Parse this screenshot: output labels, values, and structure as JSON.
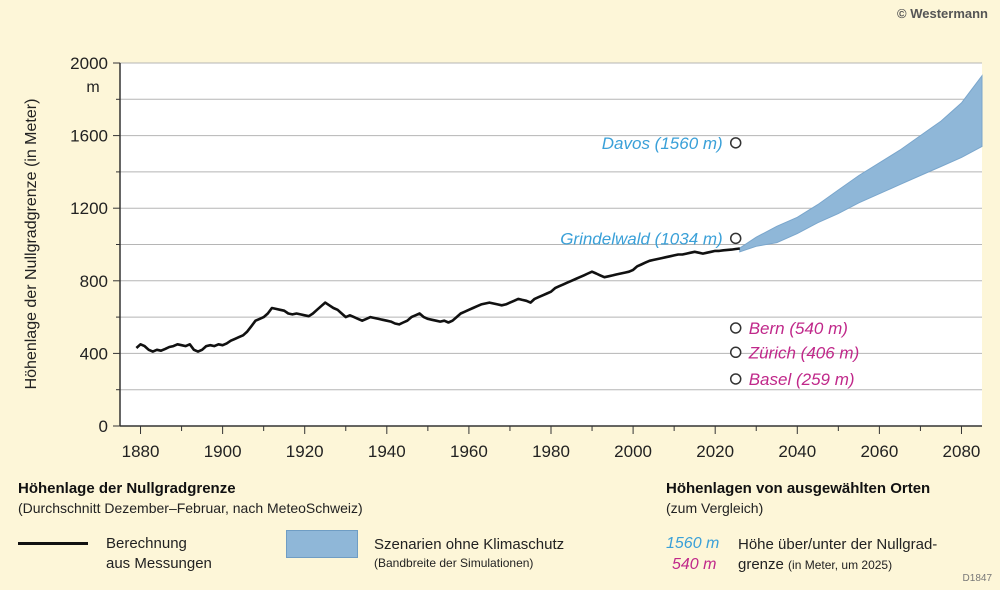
{
  "copyright": "© Westermann",
  "code": "D1847",
  "chart_data": {
    "type": "line",
    "ylabel": "Höhenlage der Nullgradgrenze (in Meter)",
    "yunit": "m",
    "xlim": [
      1875,
      2085
    ],
    "ylim": [
      0,
      2000
    ],
    "x_ticks": [
      1880,
      1900,
      1920,
      1940,
      1960,
      1980,
      2000,
      2020,
      2040,
      2060,
      2080
    ],
    "y_ticks": [
      0,
      400,
      800,
      1200,
      1600,
      2000
    ],
    "grid": true,
    "series": [
      {
        "name": "Berechnung aus Messungen",
        "color": "#111111",
        "x": [
          1879,
          1880,
          1881,
          1882,
          1883,
          1884,
          1885,
          1886,
          1887,
          1888,
          1889,
          1890,
          1891,
          1892,
          1893,
          1894,
          1895,
          1896,
          1897,
          1898,
          1899,
          1900,
          1901,
          1902,
          1903,
          1904,
          1905,
          1906,
          1907,
          1908,
          1909,
          1910,
          1911,
          1912,
          1913,
          1914,
          1915,
          1916,
          1917,
          1918,
          1919,
          1920,
          1921,
          1922,
          1923,
          1924,
          1925,
          1926,
          1927,
          1928,
          1929,
          1930,
          1931,
          1932,
          1933,
          1934,
          1935,
          1936,
          1937,
          1938,
          1939,
          1940,
          1941,
          1942,
          1943,
          1944,
          1945,
          1946,
          1947,
          1948,
          1949,
          1950,
          1951,
          1952,
          1953,
          1954,
          1955,
          1956,
          1957,
          1958,
          1959,
          1960,
          1961,
          1962,
          1963,
          1964,
          1965,
          1966,
          1967,
          1968,
          1969,
          1970,
          1971,
          1972,
          1973,
          1974,
          1975,
          1976,
          1977,
          1978,
          1979,
          1980,
          1981,
          1982,
          1983,
          1984,
          1985,
          1986,
          1987,
          1988,
          1989,
          1990,
          1991,
          1992,
          1993,
          1994,
          1995,
          1996,
          1997,
          1998,
          1999,
          2000,
          2001,
          2002,
          2003,
          2004,
          2005,
          2006,
          2007,
          2008,
          2009,
          2010,
          2011,
          2012,
          2013,
          2014,
          2015,
          2016,
          2017,
          2018,
          2019,
          2020,
          2021,
          2022,
          2023,
          2024,
          2025,
          2026
        ],
        "values": [
          430,
          450,
          440,
          420,
          410,
          420,
          415,
          425,
          435,
          440,
          450,
          445,
          440,
          450,
          420,
          410,
          420,
          440,
          445,
          440,
          450,
          445,
          455,
          470,
          480,
          490,
          500,
          520,
          550,
          580,
          590,
          600,
          620,
          650,
          645,
          640,
          635,
          620,
          615,
          620,
          615,
          610,
          605,
          620,
          640,
          660,
          680,
          665,
          650,
          640,
          620,
          600,
          610,
          600,
          590,
          580,
          590,
          600,
          595,
          590,
          585,
          580,
          575,
          565,
          560,
          570,
          580,
          600,
          610,
          620,
          600,
          590,
          585,
          580,
          575,
          580,
          570,
          580,
          600,
          620,
          630,
          640,
          650,
          660,
          670,
          675,
          680,
          675,
          670,
          665,
          670,
          680,
          690,
          700,
          695,
          690,
          680,
          700,
          710,
          720,
          730,
          740,
          760,
          770,
          780,
          790,
          800,
          810,
          820,
          830,
          840,
          850,
          840,
          830,
          820,
          825,
          830,
          835,
          840,
          845,
          850,
          860,
          880,
          890,
          900,
          910,
          915,
          920,
          925,
          930,
          935,
          940,
          945,
          945,
          950,
          955,
          960,
          955,
          950,
          955,
          960,
          965,
          965,
          968,
          970,
          972,
          975,
          978
        ]
      },
      {
        "name": "Szenarien ohne Klimaschutz",
        "color": "#8fb7d8",
        "x": [
          2026,
          2030,
          2035,
          2040,
          2045,
          2050,
          2055,
          2060,
          2065,
          2070,
          2075,
          2080,
          2085
        ],
        "low": [
          960,
          990,
          1010,
          1060,
          1120,
          1170,
          1230,
          1280,
          1330,
          1380,
          1430,
          1480,
          1540
        ],
        "high": [
          980,
          1040,
          1100,
          1150,
          1220,
          1300,
          1380,
          1450,
          1520,
          1600,
          1680,
          1780,
          1930
        ]
      }
    ],
    "places": [
      {
        "label": "Davos (1560 m)",
        "year": 2025,
        "value": 1560,
        "color": "#3aa0d8",
        "side": "left"
      },
      {
        "label": "Grindelwald (1034 m)",
        "year": 2025,
        "value": 1034,
        "color": "#3aa0d8",
        "side": "left"
      },
      {
        "label": "Bern (540 m)",
        "year": 2025,
        "value": 540,
        "color": "#c0288a",
        "side": "right"
      },
      {
        "label": "Zürich (406 m)",
        "year": 2025,
        "value": 406,
        "color": "#c0288a",
        "side": "right"
      },
      {
        "label": "Basel (259 m)",
        "year": 2025,
        "value": 259,
        "color": "#c0288a",
        "side": "right"
      }
    ]
  },
  "legend": {
    "title": "Höhenlage der Nullgradgrenze",
    "subtitle": "(Durchschnitt Dezember–Februar, nach MeteoSchweiz)",
    "line_label_1": "Berechnung",
    "line_label_2": "aus Messungen",
    "band_label": "Szenarien ohne Klimaschutz",
    "band_sublabel": "(Bandbreite der Simulationen)",
    "right_title": "Höhenlagen von ausgewählten Orten",
    "right_subtitle": "(zum Vergleich)",
    "example_blue": "1560 m",
    "example_mag": "540 m",
    "example_text_1": "Höhe über/unter der Nullgrad-",
    "example_text_2": "grenze",
    "example_text_3": "(in Meter, um 2025)"
  }
}
